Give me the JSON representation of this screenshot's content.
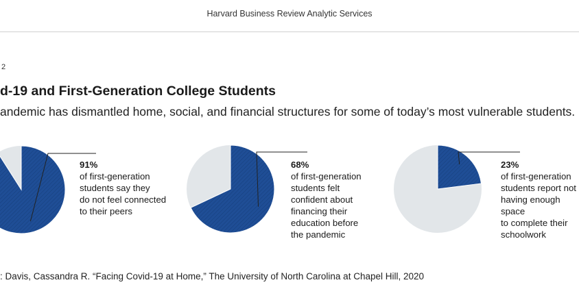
{
  "header": {
    "title": "Harvard Business Review Analytic Services"
  },
  "figure": {
    "number": "2",
    "title": "d-19 and First-Generation College Students",
    "subtitle": "andemic has dismantled home, social, and financial structures for some of today’s most vulnerable students.",
    "source": ": Davis, Cassandra R. “Facing Covid-19 at Home,” The University of North Carolina at Chapel Hill, 2020"
  },
  "colors": {
    "primary": "#1f4e96",
    "remainder": "#e2e6e9",
    "hatch": "#16407f"
  },
  "chart_data": [
    {
      "type": "pie",
      "values": [
        91,
        9
      ],
      "value_label": "91%",
      "text": "of first-generation\nstudents say they\ndo not feel connected\nto their peers"
    },
    {
      "type": "pie",
      "values": [
        68,
        32
      ],
      "value_label": "68%",
      "text": "of first-generation\nstudents felt\nconfident about\nfinancing their\neducation before\nthe pandemic"
    },
    {
      "type": "pie",
      "values": [
        23,
        77
      ],
      "value_label": "23%",
      "text": "of first-generation\nstudents report not\nhaving enough space\nto complete their\nschoolwork"
    }
  ]
}
